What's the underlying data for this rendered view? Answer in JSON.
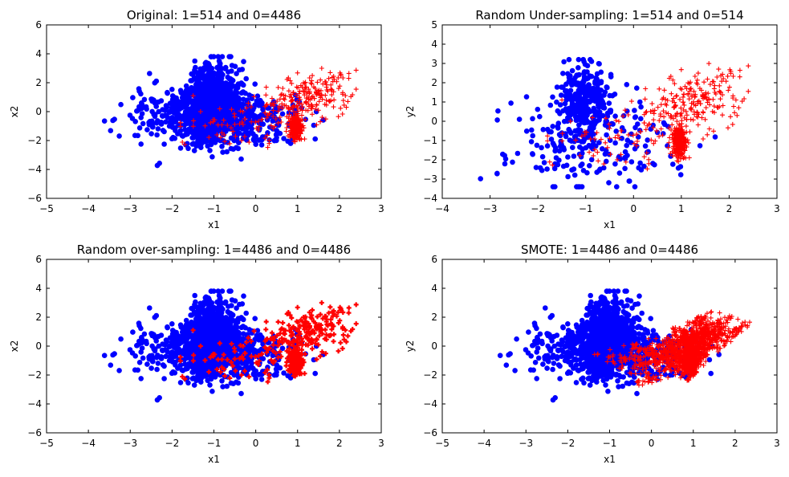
{
  "colors": {
    "class0": "#0000ff",
    "class1": "#ff0000",
    "axis": "#000000",
    "background": "#ffffff"
  },
  "chart_data": [
    {
      "type": "scatter",
      "title": "Original: 1=514 and 0=4486",
      "xlabel": "x1",
      "ylabel": "x2",
      "xlim": [
        -5,
        3
      ],
      "ylim": [
        -6,
        6
      ],
      "xticks": [
        -5,
        -4,
        -3,
        -2,
        -1,
        0,
        1,
        2,
        3
      ],
      "yticks": [
        -6,
        -4,
        -2,
        0,
        2,
        4,
        6
      ],
      "xtick_labels": [
        "−5",
        "−4",
        "−3",
        "−2",
        "−1",
        "0",
        "1",
        "2",
        "3"
      ],
      "ytick_labels": [
        "−6",
        "−4",
        "−2",
        "0",
        "2",
        "4",
        "6"
      ],
      "grid": false,
      "series": [
        {
          "label": "0",
          "count": 4486,
          "marker": "circle",
          "color": "#0000ff",
          "approx_extent": {
            "x": [
              -3.8,
              1.9
            ],
            "y": [
              -4.6,
              3.8
            ]
          },
          "approx_center": [
            -1.0,
            0.3
          ]
        },
        {
          "label": "1",
          "count": 514,
          "marker": "plus",
          "color": "#ff0000",
          "approx_extent": {
            "x": [
              -1.8,
              2.4
            ],
            "y": [
              -2.7,
              4.0
            ]
          },
          "approx_center": [
            1.0,
            -0.9
          ]
        }
      ]
    },
    {
      "type": "scatter",
      "title": "Random Under-sampling: 1=514 and 0=514",
      "xlabel": "x1",
      "ylabel": "y2",
      "xlim": [
        -4,
        3
      ],
      "ylim": [
        -4,
        5
      ],
      "xticks": [
        -4,
        -3,
        -2,
        -1,
        0,
        1,
        2,
        3
      ],
      "yticks": [
        -4,
        -3,
        -2,
        -1,
        0,
        1,
        2,
        3,
        4,
        5
      ],
      "xtick_labels": [
        "−4",
        "−3",
        "−2",
        "−1",
        "0",
        "1",
        "2",
        "3"
      ],
      "ytick_labels": [
        "−4",
        "−3",
        "−2",
        "−1",
        "0",
        "1",
        "2",
        "3",
        "4",
        "5"
      ],
      "grid": false,
      "series": [
        {
          "label": "0",
          "count": 514,
          "marker": "circle",
          "color": "#0000ff",
          "approx_extent": {
            "x": [
              -3.2,
              1.9
            ],
            "y": [
              -3.4,
              3.2
            ]
          },
          "approx_center": [
            -1.0,
            0.4
          ]
        },
        {
          "label": "1",
          "count": 514,
          "marker": "plus",
          "color": "#ff0000",
          "approx_extent": {
            "x": [
              -2.1,
              2.4
            ],
            "y": [
              -2.7,
              4.0
            ]
          },
          "approx_center": [
            1.0,
            -0.9
          ]
        }
      ]
    },
    {
      "type": "scatter",
      "title": "Random over-sampling: 1=4486 and 0=4486",
      "xlabel": "x1",
      "ylabel": "x2",
      "xlim": [
        -5,
        3
      ],
      "ylim": [
        -6,
        6
      ],
      "xticks": [
        -5,
        -4,
        -3,
        -2,
        -1,
        0,
        1,
        2,
        3
      ],
      "yticks": [
        -6,
        -4,
        -2,
        0,
        2,
        4,
        6
      ],
      "xtick_labels": [
        "−5",
        "−4",
        "−3",
        "−2",
        "−1",
        "0",
        "1",
        "2",
        "3"
      ],
      "ytick_labels": [
        "−6",
        "−4",
        "−2",
        "0",
        "2",
        "4",
        "6"
      ],
      "grid": false,
      "series": [
        {
          "label": "0",
          "count": 4486,
          "marker": "circle",
          "color": "#0000ff",
          "approx_extent": {
            "x": [
              -3.8,
              1.9
            ],
            "y": [
              -4.6,
              3.8
            ]
          },
          "approx_center": [
            -1.0,
            0.3
          ]
        },
        {
          "label": "1",
          "count": 4486,
          "marker": "plus",
          "color": "#ff0000",
          "approx_extent": {
            "x": [
              -1.8,
              2.4
            ],
            "y": [
              -2.7,
              4.0
            ]
          },
          "approx_center": [
            1.0,
            -0.9
          ]
        }
      ]
    },
    {
      "type": "scatter",
      "title": "SMOTE: 1=4486 and 0=4486",
      "xlabel": "x1",
      "ylabel": "y2",
      "xlim": [
        -5,
        3
      ],
      "ylim": [
        -6,
        6
      ],
      "xticks": [
        -5,
        -4,
        -3,
        -2,
        -1,
        0,
        1,
        2,
        3
      ],
      "yticks": [
        -6,
        -4,
        -2,
        0,
        2,
        4,
        6
      ],
      "xtick_labels": [
        "−5",
        "−4",
        "−3",
        "−2",
        "−1",
        "0",
        "1",
        "2",
        "3"
      ],
      "ytick_labels": [
        "−6",
        "−4",
        "−2",
        "0",
        "2",
        "4",
        "6"
      ],
      "grid": false,
      "series": [
        {
          "label": "0",
          "count": 4486,
          "marker": "circle",
          "color": "#0000ff",
          "approx_extent": {
            "x": [
              -3.8,
              1.9
            ],
            "y": [
              -4.6,
              3.8
            ]
          },
          "approx_center": [
            -1.0,
            0.3
          ]
        },
        {
          "label": "1",
          "count": 4486,
          "marker": "plus",
          "color": "#ff0000",
          "approx_extent": {
            "x": [
              -1.8,
              2.4
            ],
            "y": [
              -2.7,
              4.0
            ]
          },
          "approx_center": [
            1.0,
            -0.5
          ]
        }
      ]
    }
  ]
}
